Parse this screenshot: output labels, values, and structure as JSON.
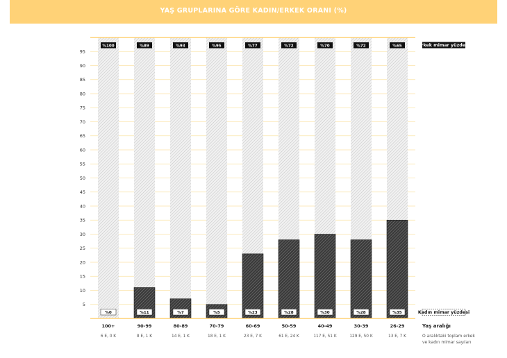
{
  "header": {
    "title": "YAŞ GRUPLARINA GÖRE KADIN/ERKEK ORANI (%)"
  },
  "chart_data": {
    "type": "bar",
    "stacked": true,
    "title": "YAŞ GRUPLARINA GÖRE KADIN/ERKEK ORANI (%)",
    "categories": [
      "100+",
      "90-99",
      "80-89",
      "70-79",
      "60-69",
      "50-59",
      "40-49",
      "30-39",
      "26-29"
    ],
    "counts": [
      "6 E, 0 K",
      "8 E, 1 K",
      "14 E, 1 K",
      "18 E, 1 K",
      "23 E, 7 K",
      "61 E, 24 K",
      "117 E, 51 K",
      "129 E, 50 K",
      "13 E, 7 K"
    ],
    "series": [
      {
        "name": "Kadın mimar yüzdesi",
        "values": [
          0,
          11,
          7,
          5,
          23,
          28,
          30,
          28,
          35
        ],
        "labels": [
          "%0",
          "%11",
          "%7",
          "%5",
          "%23",
          "%28",
          "%30",
          "%28",
          "%35"
        ]
      },
      {
        "name": "Erkek mimar yüzdesi",
        "values": [
          100,
          89,
          93,
          95,
          77,
          72,
          70,
          72,
          65
        ],
        "labels": [
          "%100",
          "%89",
          "%93",
          "%95",
          "%77",
          "%72",
          "%70",
          "%72",
          "%65"
        ]
      }
    ],
    "yticks": [
      5,
      10,
      15,
      20,
      25,
      30,
      35,
      40,
      45,
      50,
      55,
      60,
      65,
      70,
      75,
      80,
      85,
      90,
      95
    ],
    "ylim": [
      0,
      100
    ],
    "xlabel": "Yaş aralığı",
    "xlabel_note": "O aralıktaki toplam erkek ve kadın mimar sayıları",
    "colors": {
      "accent": "#ffd277",
      "female": "#555555",
      "male": "#d9d9d9",
      "grid": "#fbe3a8"
    }
  }
}
